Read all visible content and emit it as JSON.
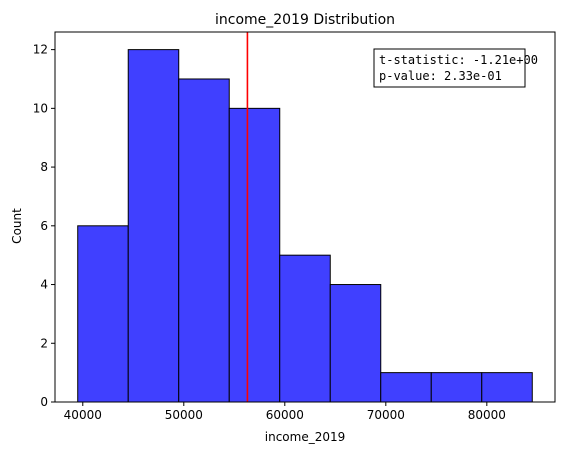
{
  "chart_data": {
    "type": "bar",
    "title": "income_2019 Distribution",
    "xlabel": "income_2019",
    "ylabel": "Count",
    "bin_edges": [
      39500,
      44500,
      49500,
      54500,
      59500,
      64500,
      69500,
      74500,
      79500,
      84500
    ],
    "values": [
      6,
      12,
      11,
      10,
      5,
      4,
      1,
      1,
      1
    ],
    "xlim": [
      37250,
      86750
    ],
    "ylim": [
      0,
      12.6
    ],
    "xticks": [
      40000,
      50000,
      60000,
      70000,
      80000
    ],
    "xtick_labels": [
      "40000",
      "50000",
      "60000",
      "70000",
      "80000"
    ],
    "yticks": [
      0,
      2,
      4,
      6,
      8,
      10,
      12
    ],
    "ytick_labels": [
      "0",
      "2",
      "4",
      "6",
      "8",
      "10",
      "12"
    ],
    "vline": {
      "x": 56300,
      "color": "#ff0000"
    },
    "bar_color": "#4040ff",
    "annotation": {
      "lines": [
        "t-statistic: -1.21e+00",
        "p-value:  2.33e-01"
      ],
      "placement": "top-right"
    },
    "grid": false
  }
}
